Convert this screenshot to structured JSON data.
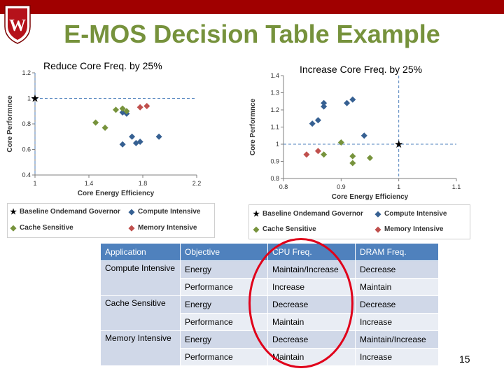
{
  "header": {
    "title": "E-MOS Decision Table Example",
    "bar_color": "#a00000",
    "title_color": "#76923c"
  },
  "logo": {
    "letter": "W"
  },
  "left_chart": {
    "heading": "Reduce Core Freq. by 25%",
    "chart_data": {
      "type": "scatter",
      "xlabel": "Core Energy Efficiency",
      "ylabel": "Core Performnce",
      "xlim": [
        1,
        2.2
      ],
      "ylim": [
        0.4,
        1.2
      ],
      "xticks": [
        "1",
        "1.4",
        "1.8",
        "2.2"
      ],
      "yticks": [
        "0.4",
        "0.6",
        "0.8",
        "1",
        "1.2"
      ],
      "crosshair": {
        "x": 1,
        "y": 1
      },
      "series": [
        {
          "name": "Baseline Ondemand Governor",
          "marker": "star",
          "color": "#000000",
          "points": [
            [
              1.0,
              1.0
            ]
          ]
        },
        {
          "name": "Compute Intensive",
          "marker": "diamond",
          "color": "#366092",
          "points": [
            [
              1.65,
              0.89
            ],
            [
              1.68,
              0.88
            ],
            [
              1.65,
              0.64
            ],
            [
              1.72,
              0.7
            ],
            [
              1.75,
              0.65
            ],
            [
              1.78,
              0.66
            ],
            [
              1.92,
              0.7
            ]
          ]
        },
        {
          "name": "Cache Sensitive",
          "marker": "diamond",
          "color": "#77933c",
          "points": [
            [
              1.45,
              0.81
            ],
            [
              1.52,
              0.77
            ],
            [
              1.6,
              0.91
            ],
            [
              1.65,
              0.92
            ],
            [
              1.68,
              0.9
            ]
          ]
        },
        {
          "name": "Memory Intensive",
          "marker": "diamond",
          "color": "#c0504d",
          "points": [
            [
              1.78,
              0.93
            ],
            [
              1.83,
              0.94
            ]
          ]
        }
      ]
    }
  },
  "right_chart": {
    "heading": "Increase Core Freq. by 25%",
    "chart_data": {
      "type": "scatter",
      "xlabel": "Core Energy Efficiency",
      "ylabel": "Core Performnce",
      "xlim": [
        0.8,
        1.1
      ],
      "ylim": [
        0.8,
        1.4
      ],
      "xticks": [
        "0.8",
        "0.9",
        "1",
        "1.1"
      ],
      "yticks": [
        "0.8",
        "0.9",
        "1",
        "1.1",
        "1.2",
        "1.3",
        "1.4"
      ],
      "crosshair": {
        "x": 1,
        "y": 1
      },
      "series": [
        {
          "name": "Baseline Ondemand Governor",
          "marker": "star",
          "color": "#000000",
          "points": [
            [
              1.0,
              1.0
            ]
          ]
        },
        {
          "name": "Compute Intensive",
          "marker": "diamond",
          "color": "#366092",
          "points": [
            [
              0.85,
              1.12
            ],
            [
              0.86,
              1.14
            ],
            [
              0.87,
              1.24
            ],
            [
              0.87,
              1.22
            ],
            [
              0.91,
              1.24
            ],
            [
              0.92,
              1.26
            ],
            [
              0.94,
              1.05
            ]
          ]
        },
        {
          "name": "Cache Sensitive",
          "marker": "diamond",
          "color": "#77933c",
          "points": [
            [
              0.87,
              0.94
            ],
            [
              0.9,
              1.01
            ],
            [
              0.92,
              0.93
            ],
            [
              0.92,
              0.89
            ],
            [
              0.95,
              0.92
            ]
          ]
        },
        {
          "name": "Memory Intensive",
          "marker": "diamond",
          "color": "#c0504d",
          "points": [
            [
              0.84,
              0.94
            ],
            [
              0.86,
              0.96
            ]
          ]
        }
      ]
    }
  },
  "legend": {
    "baseline": "Baseline Ondemand Governor",
    "compute": "Compute Intensive",
    "cache": "Cache Sensitive",
    "memory": "Memory Intensive",
    "colors": {
      "baseline": "#000000",
      "compute": "#366092",
      "cache": "#77933c",
      "memory": "#c0504d"
    }
  },
  "table": {
    "headers": [
      "Application",
      "Objective",
      "CPU Freq.",
      "DRAM Freq."
    ],
    "groups": [
      {
        "application": "Compute Intensive",
        "rows": [
          [
            "Energy",
            "Maintain/Increase",
            "Decrease"
          ],
          [
            "Performance",
            "Increase",
            "Maintain"
          ]
        ]
      },
      {
        "application": "Cache Sensitive",
        "rows": [
          [
            "Energy",
            "Decrease",
            "Decrease"
          ],
          [
            "Performance",
            "Maintain",
            "Increase"
          ]
        ]
      },
      {
        "application": "Memory Intensive",
        "rows": [
          [
            "Energy",
            "Decrease",
            "Maintain/Increase"
          ],
          [
            "Performance",
            "Maintain",
            "Increase"
          ]
        ]
      }
    ]
  },
  "page_number": "15"
}
